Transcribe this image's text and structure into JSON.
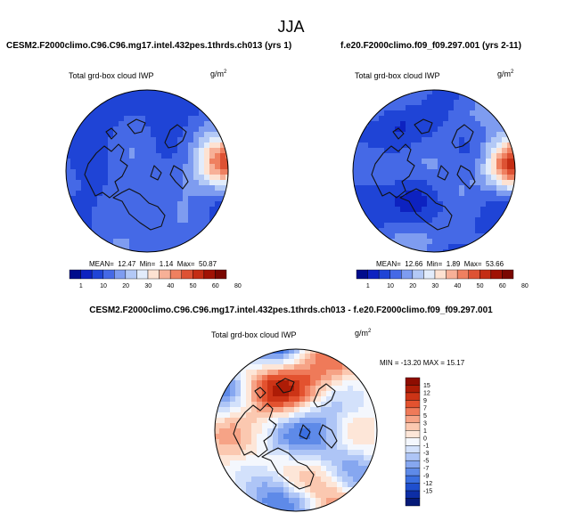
{
  "page": {
    "title": "JJA"
  },
  "colors": {
    "coast": "#111111",
    "frame": "#000000",
    "abs_scale": [
      "#000d8c",
      "#0d22c0",
      "#1f44d6",
      "#4569e6",
      "#7e9cf0",
      "#b3c9f6",
      "#e2ecfb",
      "#fde2d2",
      "#f7b097",
      "#ef8060",
      "#dd5234",
      "#c42d14",
      "#a01204",
      "#7a0701"
    ],
    "diff_scale": [
      "#061a78",
      "#0d2ea6",
      "#1f4fce",
      "#3b6fe0",
      "#5e8ae8",
      "#86a7f0",
      "#aec5f6",
      "#d3e1fb",
      "#f4f7fd",
      "#fde6d8",
      "#fbc8b0",
      "#f6a386",
      "#ef7a59",
      "#e3522f",
      "#cc3416",
      "#ad1c06",
      "#8e0d01"
    ]
  },
  "chart_data": [
    {
      "type": "heatmap",
      "projection": "north-polar-stereographic",
      "title": "CESM2.F2000climo.C96.C96.mg17.intel.432pes.1thrds.ch013 (yrs 1)",
      "variable": "Total grd-box cloud IWP",
      "units": "g/m",
      "units_exp": "2",
      "stats": {
        "mean_label": "MEAN=",
        "mean": "12.47",
        "min_label": "Min=",
        "min": "1.14",
        "max_label": "Max=",
        "max": "50.87"
      },
      "colorbar": {
        "orientation": "horizontal",
        "ticks": [
          "1",
          "10",
          "20",
          "30",
          "40",
          "50",
          "60",
          "80"
        ]
      }
    },
    {
      "type": "heatmap",
      "projection": "north-polar-stereographic",
      "title": "f.e20.F2000climo.f09_f09.297.001 (yrs 2-11)",
      "variable": "Total grd-box cloud IWP",
      "units": "g/m",
      "units_exp": "2",
      "stats": {
        "mean_label": "MEAN=",
        "mean": "12.66",
        "min_label": "Min=",
        "min": "1.89",
        "max_label": "Max=",
        "max": "53.66"
      },
      "colorbar": {
        "orientation": "horizontal",
        "ticks": [
          "1",
          "10",
          "20",
          "30",
          "40",
          "50",
          "60",
          "80"
        ]
      }
    },
    {
      "type": "heatmap",
      "projection": "north-polar-stereographic",
      "title": "CESM2.F2000climo.C96.C96.mg17.intel.432pes.1thrds.ch013 - f.e20.F2000climo.f09_f09.297.001",
      "variable": "Total grd-box cloud IWP",
      "units": "g/m",
      "units_exp": "2",
      "stats_text": "MIN = -13.20 MAX =  15.17",
      "colorbar": {
        "orientation": "vertical",
        "ticks": [
          "15",
          "12",
          "9",
          "7",
          "5",
          "3",
          "1",
          "0",
          "-1",
          "-3",
          "-5",
          "-7",
          "-9",
          "-12",
          "-15"
        ]
      }
    }
  ]
}
